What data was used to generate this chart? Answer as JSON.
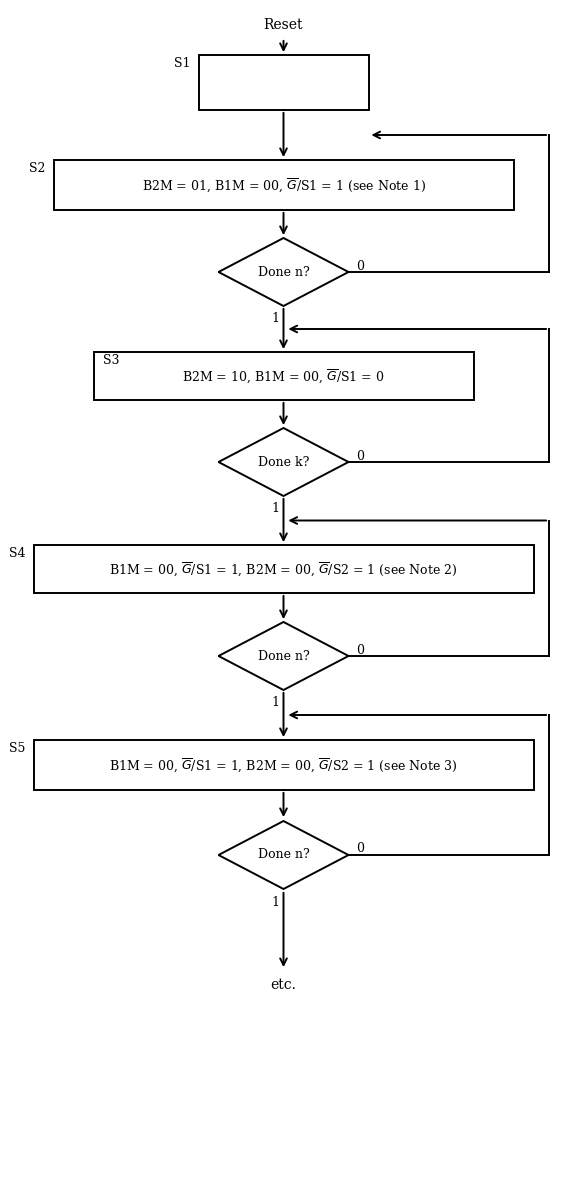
{
  "bg_color": "#ffffff",
  "line_color": "#000000",
  "text_color": "#000000",
  "figsize": [
    5.67,
    12.0
  ],
  "dpi": 100,
  "reset_text": "Reset",
  "etc_text": "etc.",
  "states": [
    "S1",
    "S2",
    "S3",
    "S4",
    "S5"
  ],
  "s1_label": "",
  "s2_label": "B2M = 01, B1M = 00, $\\overline{G}$/S1 = 1 (see Note 1)",
  "s3_label": "B2M = 10, B1M = 00, $\\overline{G}$/S1 = 0",
  "s4_label": "B1M = 00, $\\overline{G}$/S1 = 1, B2M = 00, $\\overline{G}$/S2 = 1 (see Note 2)",
  "s5_label": "B1M = 00, $\\overline{G}$/S1 = 1, B2M = 00, $\\overline{G}$/S2 = 1 (see Note 3)",
  "d1_label": "Done n?",
  "d2_label": "Done k?",
  "d3_label": "Done n?",
  "d4_label": "Done n?",
  "lw": 1.4,
  "font_size_label": 9.0,
  "font_size_state": 9.0,
  "font_size_title": 10.0
}
